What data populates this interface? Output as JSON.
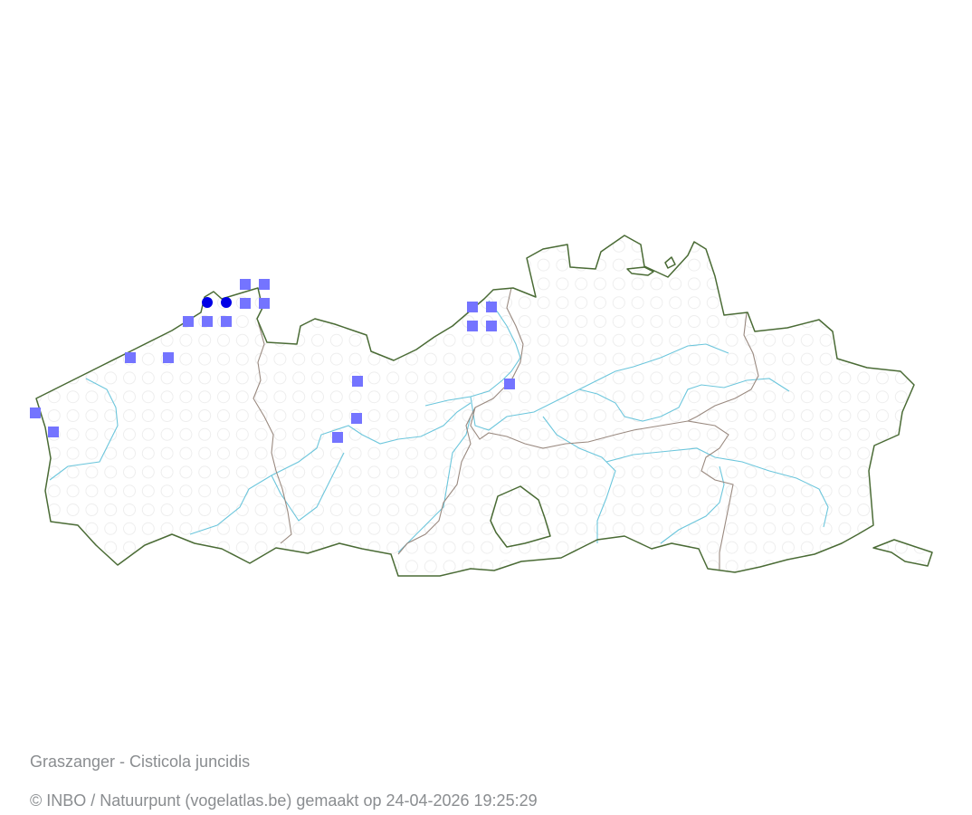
{
  "map": {
    "species_title": "Graszanger - Cisticola juncidis",
    "credit": "© INBO / Natuurpunt (vogelatlas.be) gemaakt op 24-04-2026 19:25:29",
    "colors": {
      "outline": "#4a6b35",
      "province_border": "#9a8a80",
      "river": "#6cc6dc",
      "grid_circle": "#eeeeee",
      "marker_square": "#7474ff",
      "marker_circle": "#0000e6"
    },
    "marker_types": [
      "square",
      "circle"
    ]
  }
}
